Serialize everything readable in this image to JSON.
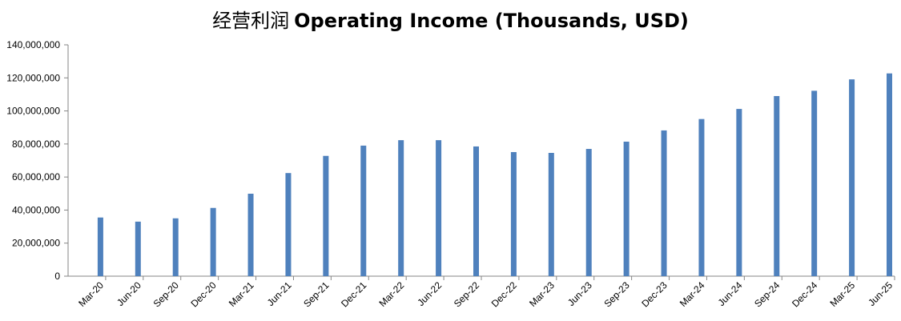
{
  "chart_data": {
    "type": "bar",
    "title_cn": "经营利润",
    "title": "Operating Income (Thousands, USD)",
    "xlabel": "",
    "ylabel": "",
    "ylim": [
      0,
      140000000
    ],
    "yticks": [
      0,
      20000000,
      40000000,
      60000000,
      80000000,
      100000000,
      120000000,
      140000000
    ],
    "ytick_labels": [
      "0",
      "20,000,000",
      "40,000,000",
      "60,000,000",
      "80,000,000",
      "100,000,000",
      "120,000,000",
      "140,000,000"
    ],
    "grid": false,
    "legend": "none",
    "bar_color": "#4F81BD",
    "categories": [
      "Mar-20",
      "Jun-20",
      "Sep-20",
      "Dec-20",
      "Mar-21",
      "Jun-21",
      "Sep-21",
      "Dec-21",
      "Mar-22",
      "Jun-22",
      "Sep-22",
      "Dec-22",
      "Mar-23",
      "Jun-23",
      "Sep-23",
      "Dec-23",
      "Mar-24",
      "Jun-24",
      "Sep-24",
      "Dec-24",
      "Mar-25",
      "Jun-25"
    ],
    "values": [
      35500000,
      33000000,
      35000000,
      41300000,
      49900000,
      62400000,
      72800000,
      79000000,
      82300000,
      82300000,
      78500000,
      75100000,
      74600000,
      77000000,
      81400000,
      88200000,
      95100000,
      101200000,
      109000000,
      112200000,
      119100000,
      122700000
    ]
  }
}
